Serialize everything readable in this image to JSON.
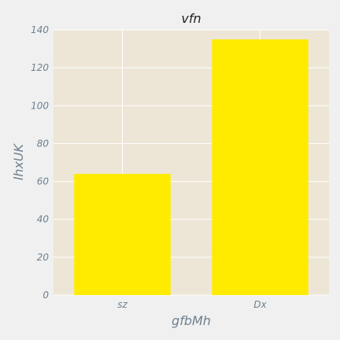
{
  "chart_data": {
    "type": "bar",
    "title": "vfn",
    "xlabel": "gfbMh",
    "ylabel": "lhxUK",
    "categories": [
      "sz",
      "Dx"
    ],
    "values": [
      64,
      135
    ],
    "ylim": [
      0,
      140
    ],
    "yticks": [
      0,
      20,
      40,
      60,
      80,
      100,
      120,
      140
    ],
    "grid": true,
    "legend": "none",
    "bar_color": "#ffeb00",
    "plot_background": "#ede6d6",
    "figure_background": "#f0f0f0",
    "grid_color": "#ffffff"
  }
}
